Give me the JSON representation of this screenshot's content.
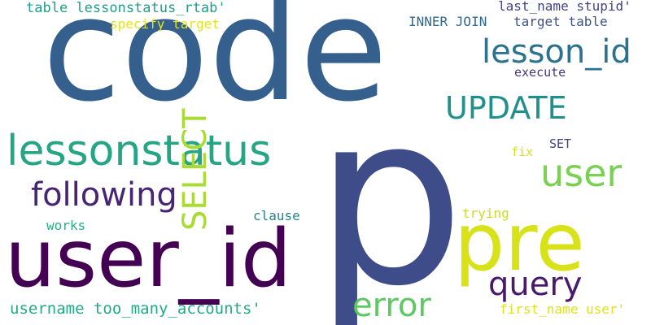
{
  "cloud": {
    "words": [
      {
        "text": "code",
        "color": "#355f8d"
      },
      {
        "text": "p",
        "color": "#3f4c8a"
      },
      {
        "text": "user_id",
        "color": "#440154"
      },
      {
        "text": "pre",
        "color": "#d8e219"
      },
      {
        "text": "lessonstatus",
        "color": "#25a584"
      },
      {
        "text": "following",
        "color": "#482475"
      },
      {
        "text": "SELECT",
        "color": "#a8db34"
      },
      {
        "text": "lesson_id",
        "color": "#2c728e"
      },
      {
        "text": "UPDATE",
        "color": "#21908d"
      },
      {
        "text": "user",
        "color": "#7ad151"
      },
      {
        "text": "query",
        "color": "#481a6c"
      },
      {
        "text": "error",
        "color": "#5ec962"
      },
      {
        "text": "username too_many_accounts'",
        "color": "#22a884"
      },
      {
        "text": "table lessonstatus_rtab'",
        "color": "#1f9e89"
      },
      {
        "text": "specify target",
        "color": "#e5e419"
      },
      {
        "text": "last_name stupid'",
        "color": "#414487"
      },
      {
        "text": "INNER JOIN",
        "color": "#31688e"
      },
      {
        "text": "target table",
        "color": "#3b528b"
      },
      {
        "text": "execute",
        "color": "#46337e"
      },
      {
        "text": "SET",
        "color": "#404387"
      },
      {
        "text": "fix",
        "color": "#d0e11c"
      },
      {
        "text": "trying",
        "color": "#c8e020"
      },
      {
        "text": "works",
        "color": "#2ab07f"
      },
      {
        "text": "clause",
        "color": "#26828e"
      },
      {
        "text": "first_name user'",
        "color": "#dde318"
      }
    ]
  }
}
